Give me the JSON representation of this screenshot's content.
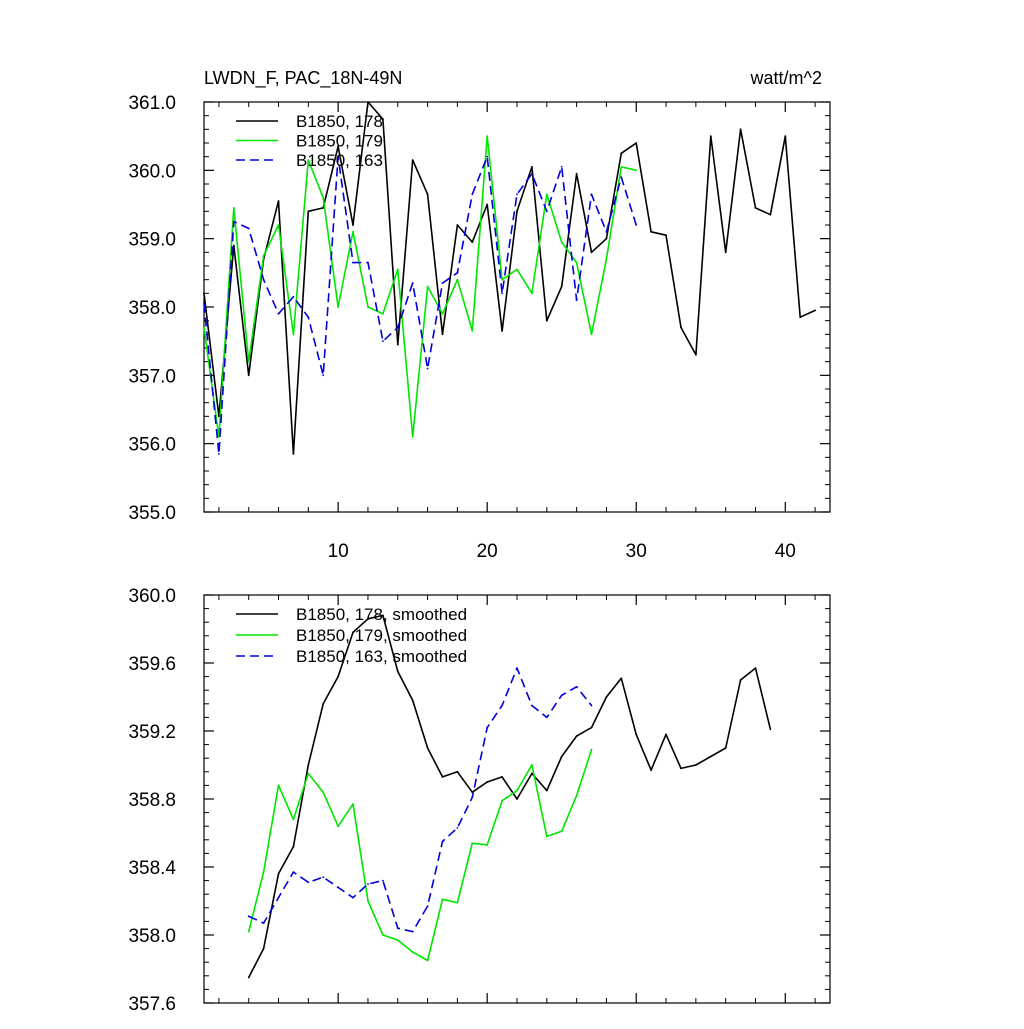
{
  "chart_data": [
    {
      "type": "line",
      "title": "LWDN_F, PAC_18N-49N",
      "units": "watt/m^2",
      "xlim": [
        1,
        43
      ],
      "ylim": [
        355.0,
        361.0
      ],
      "xticks": [
        10,
        20,
        30,
        40
      ],
      "xtick_labels": [
        "10",
        "20",
        "30",
        "40"
      ],
      "yticks": [
        355.0,
        356.0,
        357.0,
        358.0,
        359.0,
        360.0,
        361.0
      ],
      "ytick_labels": [
        "355.0",
        "356.0",
        "357.0",
        "358.0",
        "359.0",
        "360.0",
        "361.0"
      ],
      "legend_position": "top-left",
      "series": [
        {
          "name": "B1850, 178",
          "color": "#000000",
          "dash": "solid",
          "x": [
            1,
            2,
            3,
            4,
            5,
            6,
            7,
            8,
            9,
            10,
            11,
            12,
            13,
            14,
            15,
            16,
            17,
            18,
            19,
            20,
            21,
            22,
            23,
            24,
            25,
            26,
            27,
            28,
            29,
            30,
            31,
            32,
            33,
            34,
            35,
            36,
            37,
            38,
            39,
            40,
            41,
            42
          ],
          "values": [
            358.2,
            356.4,
            358.9,
            357.0,
            358.7,
            359.55,
            355.85,
            359.4,
            359.45,
            360.35,
            359.2,
            361.0,
            360.75,
            357.45,
            360.15,
            359.65,
            357.6,
            359.2,
            358.95,
            359.5,
            357.65,
            359.4,
            360.05,
            357.8,
            358.3,
            359.95,
            358.8,
            359.0,
            360.25,
            360.4,
            359.1,
            359.05,
            357.7,
            357.3,
            360.5,
            358.8,
            360.6,
            359.45,
            359.35,
            360.5,
            357.85,
            357.95
          ]
        },
        {
          "name": "B1850, 179",
          "color": "#00e600",
          "dash": "solid",
          "x": [
            1,
            2,
            3,
            4,
            5,
            6,
            7,
            8,
            9,
            10,
            11,
            12,
            13,
            14,
            15,
            16,
            17,
            18,
            19,
            20,
            21,
            22,
            23,
            24,
            25,
            26,
            27,
            28,
            29,
            30
          ],
          "values": [
            357.7,
            356.1,
            359.45,
            357.2,
            358.75,
            359.2,
            357.6,
            360.15,
            359.6,
            358.0,
            359.1,
            358.0,
            357.9,
            358.55,
            356.1,
            358.3,
            357.9,
            358.4,
            357.65,
            360.5,
            358.4,
            358.55,
            358.2,
            359.65,
            358.95,
            358.65,
            357.6,
            358.7,
            360.05,
            360.0
          ]
        },
        {
          "name": "B1850, 163",
          "color": "#0000dd",
          "dash": "dashed",
          "x": [
            1,
            2,
            3,
            4,
            5,
            6,
            7,
            8,
            9,
            10,
            11,
            12,
            13,
            14,
            15,
            16,
            17,
            18,
            19,
            20,
            21,
            22,
            23,
            24,
            25,
            26,
            27,
            28,
            29,
            30
          ],
          "values": [
            358.05,
            355.85,
            359.25,
            359.15,
            358.4,
            357.9,
            358.15,
            357.85,
            357.0,
            360.2,
            358.65,
            358.65,
            357.5,
            357.7,
            358.35,
            357.1,
            358.35,
            358.5,
            359.65,
            360.2,
            358.2,
            359.65,
            359.95,
            359.4,
            360.05,
            358.1,
            359.65,
            359.1,
            359.9,
            359.2
          ]
        }
      ]
    },
    {
      "type": "line",
      "title": "",
      "xlim": [
        1,
        43
      ],
      "ylim": [
        357.6,
        360.0
      ],
      "xticks": [
        10,
        20,
        30,
        40
      ],
      "xtick_labels": [],
      "yticks": [
        357.6,
        358.0,
        358.4,
        358.8,
        359.2,
        359.6,
        360.0
      ],
      "ytick_labels": [
        "357.6",
        "358.0",
        "358.4",
        "358.8",
        "359.2",
        "359.6",
        "360.0"
      ],
      "legend_position": "top-left",
      "series": [
        {
          "name": "B1850, 178, smoothed",
          "color": "#000000",
          "dash": "solid",
          "x": [
            4,
            5,
            6,
            7,
            8,
            9,
            10,
            11,
            12,
            13,
            14,
            15,
            16,
            17,
            18,
            19,
            20,
            21,
            22,
            23,
            24,
            25,
            26,
            27,
            28,
            29,
            30,
            31,
            32,
            33,
            34,
            35,
            36,
            37,
            38,
            39
          ],
          "values": [
            357.75,
            357.92,
            358.36,
            358.52,
            359.0,
            359.36,
            359.52,
            359.78,
            359.86,
            359.88,
            359.55,
            359.38,
            359.1,
            358.93,
            358.96,
            358.84,
            358.9,
            358.93,
            358.8,
            358.95,
            358.85,
            359.05,
            359.17,
            359.22,
            359.4,
            359.51,
            359.18,
            358.97,
            359.18,
            358.98,
            359.0,
            359.05,
            359.1,
            359.5,
            359.57,
            359.21
          ]
        },
        {
          "name": "B1850, 179, smoothed",
          "color": "#00e600",
          "dash": "solid",
          "x": [
            4,
            5,
            6,
            7,
            8,
            9,
            10,
            11,
            12,
            13,
            14,
            15,
            16,
            17,
            18,
            19,
            20,
            21,
            22,
            23,
            24,
            25,
            26,
            27
          ],
          "values": [
            358.02,
            358.37,
            358.88,
            358.68,
            358.95,
            358.84,
            358.64,
            358.77,
            358.2,
            358.0,
            357.97,
            357.9,
            357.85,
            358.21,
            358.19,
            358.54,
            358.53,
            358.79,
            358.85,
            359.0,
            358.58,
            358.61,
            358.82,
            359.09
          ]
        },
        {
          "name": "B1850, 163, smoothed",
          "color": "#0000dd",
          "dash": "dashed",
          "x": [
            4,
            5,
            6,
            7,
            8,
            9,
            10,
            11,
            12,
            13,
            14,
            15,
            16,
            17,
            18,
            19,
            20,
            21,
            22,
            23,
            24,
            25,
            26,
            27
          ],
          "values": [
            358.11,
            358.07,
            358.22,
            358.37,
            358.31,
            358.34,
            358.28,
            358.22,
            358.3,
            358.32,
            358.04,
            358.02,
            358.17,
            358.55,
            358.63,
            358.81,
            359.22,
            359.35,
            359.57,
            359.35,
            359.28,
            359.41,
            359.46,
            359.35
          ]
        }
      ]
    }
  ]
}
